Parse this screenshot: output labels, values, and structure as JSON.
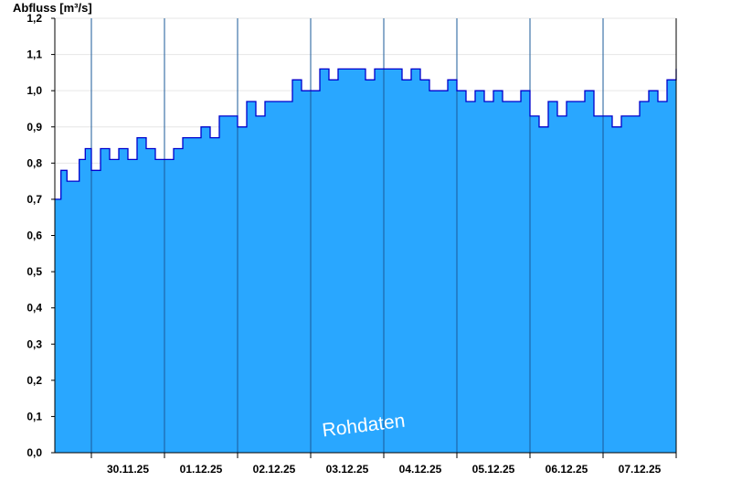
{
  "chart_data": {
    "type": "area",
    "ylabel": "Abfluss [m³/s]",
    "watermark": "Rohdaten",
    "ylim": [
      0,
      1.2
    ],
    "y_ticks": [
      "0,0",
      "0,1",
      "0,2",
      "0,3",
      "0,4",
      "0,5",
      "0,6",
      "0,7",
      "0,8",
      "0,9",
      "1,0",
      "1,1",
      "1,2"
    ],
    "x_range": [
      "2025-11-29 12:00",
      "2025-12-08 00:00"
    ],
    "day_boundaries": [
      "2025-11-30",
      "2025-12-01",
      "2025-12-02",
      "2025-12-03",
      "2025-12-04",
      "2025-12-05",
      "2025-12-06",
      "2025-12-07",
      "2025-12-08"
    ],
    "x_tick_labels": [
      "30.11.25",
      "01.12.25",
      "02.12.25",
      "03.12.25",
      "04.12.25",
      "05.12.25",
      "06.12.25",
      "07.12.25"
    ],
    "grid": "horizontal",
    "colors": {
      "fill": "#29a7ff",
      "line": "#0000cc",
      "grid": "#e6e6e6",
      "axis": "#000000",
      "day_line": "#1a5a9a"
    },
    "series": [
      {
        "x": [
          "2025-11-29 12:00",
          "2025-11-29 14:00",
          "2025-11-29 16:00",
          "2025-11-29 18:00",
          "2025-11-29 20:00",
          "2025-11-29 22:00",
          "2025-11-30 00:00",
          "2025-11-30 03:00",
          "2025-11-30 06:00",
          "2025-11-30 09:00",
          "2025-11-30 12:00",
          "2025-11-30 15:00",
          "2025-11-30 18:00",
          "2025-11-30 21:00",
          "2025-12-01 00:00",
          "2025-12-01 03:00",
          "2025-12-01 06:00",
          "2025-12-01 09:00",
          "2025-12-01 12:00",
          "2025-12-01 15:00",
          "2025-12-01 18:00",
          "2025-12-01 21:00",
          "2025-12-02 00:00",
          "2025-12-02 03:00",
          "2025-12-02 06:00",
          "2025-12-02 09:00",
          "2025-12-02 12:00",
          "2025-12-02 15:00",
          "2025-12-02 18:00",
          "2025-12-02 21:00",
          "2025-12-03 00:00",
          "2025-12-03 03:00",
          "2025-12-03 06:00",
          "2025-12-03 09:00",
          "2025-12-03 12:00",
          "2025-12-03 15:00",
          "2025-12-03 18:00",
          "2025-12-03 21:00",
          "2025-12-04 00:00",
          "2025-12-04 03:00",
          "2025-12-04 06:00",
          "2025-12-04 09:00",
          "2025-12-04 12:00",
          "2025-12-04 15:00",
          "2025-12-04 18:00",
          "2025-12-04 21:00",
          "2025-12-05 00:00",
          "2025-12-05 03:00",
          "2025-12-05 06:00",
          "2025-12-05 09:00",
          "2025-12-05 12:00",
          "2025-12-05 15:00",
          "2025-12-05 18:00",
          "2025-12-05 21:00",
          "2025-12-06 00:00",
          "2025-12-06 03:00",
          "2025-12-06 06:00",
          "2025-12-06 09:00",
          "2025-12-06 12:00",
          "2025-12-06 15:00",
          "2025-12-06 18:00",
          "2025-12-06 21:00",
          "2025-12-07 00:00",
          "2025-12-07 03:00",
          "2025-12-07 06:00",
          "2025-12-07 09:00",
          "2025-12-07 12:00",
          "2025-12-07 15:00",
          "2025-12-07 18:00",
          "2025-12-07 21:00",
          "2025-12-08 00:00"
        ],
        "values": [
          0.7,
          0.78,
          0.75,
          0.75,
          0.81,
          0.84,
          0.78,
          0.84,
          0.81,
          0.84,
          0.81,
          0.87,
          0.84,
          0.81,
          0.81,
          0.84,
          0.87,
          0.87,
          0.9,
          0.87,
          0.93,
          0.93,
          0.9,
          0.97,
          0.93,
          0.97,
          0.97,
          0.97,
          1.03,
          1.0,
          1.0,
          1.06,
          1.03,
          1.06,
          1.06,
          1.06,
          1.03,
          1.06,
          1.06,
          1.06,
          1.03,
          1.06,
          1.03,
          1.0,
          1.0,
          1.03,
          1.0,
          0.97,
          1.0,
          0.97,
          1.0,
          0.97,
          0.97,
          1.0,
          0.93,
          0.9,
          0.97,
          0.93,
          0.97,
          0.97,
          1.0,
          0.93,
          0.93,
          0.9,
          0.93,
          0.93,
          0.97,
          1.0,
          0.97,
          1.03,
          1.06
        ]
      }
    ]
  }
}
